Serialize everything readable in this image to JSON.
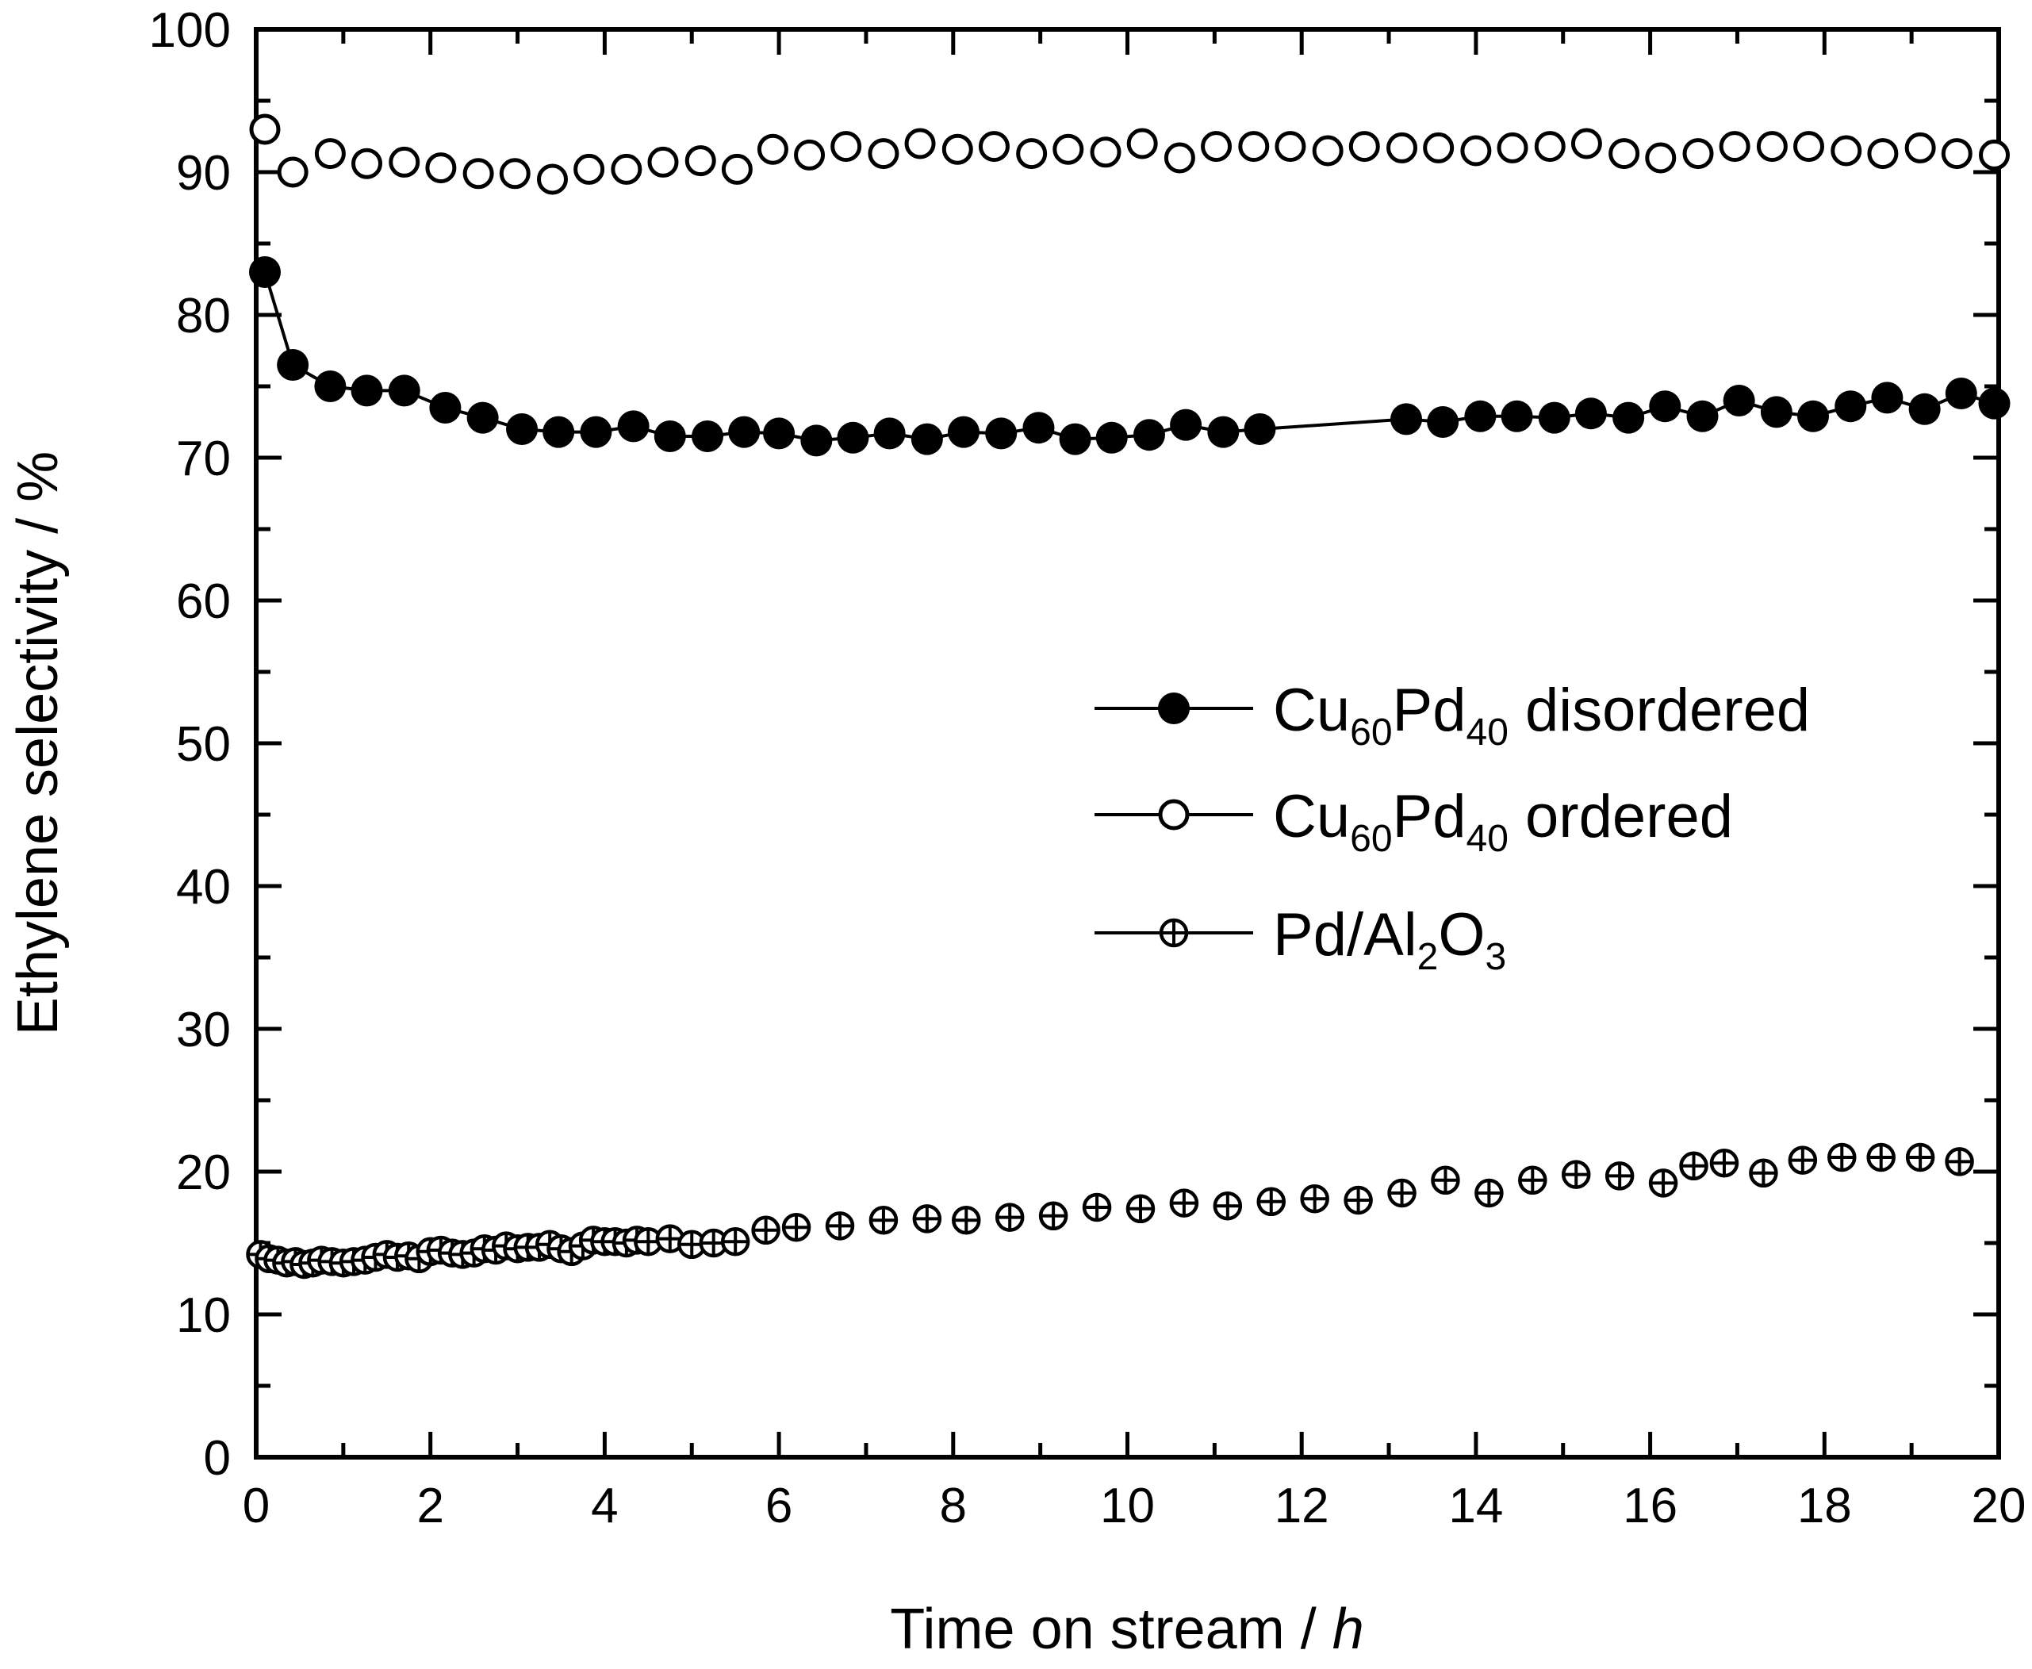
{
  "chart_data": {
    "type": "scatter",
    "title": "",
    "xlabel": "Time on stream / ",
    "xlabel_unit": "h",
    "ylabel": "Ethylene selectivity / %",
    "xlim": [
      0,
      20
    ],
    "ylim": [
      0,
      100
    ],
    "xticks": [
      "0",
      "2",
      "4",
      "6",
      "8",
      "10",
      "12",
      "14",
      "16",
      "18",
      "20"
    ],
    "yticks": [
      "0",
      "10",
      "20",
      "30",
      "40",
      "50",
      "60",
      "70",
      "80",
      "90",
      "100"
    ],
    "grid": false,
    "legend_position": "center-right",
    "series": [
      {
        "name": "Cu60Pd40 disordered",
        "legend": {
          "pre": "Cu",
          "sub1": "60",
          "mid": "Pd",
          "sub2": "40",
          "post": " disordered"
        },
        "marker": "filled-circle",
        "connected": true,
        "x": [
          0.1,
          0.42,
          0.85,
          1.27,
          1.7,
          2.17,
          2.6,
          3.05,
          3.47,
          3.9,
          4.33,
          4.75,
          5.18,
          5.6,
          6.0,
          6.43,
          6.85,
          7.27,
          7.7,
          8.12,
          8.55,
          8.98,
          9.4,
          9.82,
          10.25,
          10.67,
          11.1,
          11.52,
          13.2,
          13.62,
          14.05,
          14.47,
          14.9,
          15.32,
          15.75,
          16.17,
          16.6,
          17.02,
          17.45,
          17.87,
          18.3,
          18.72,
          19.15,
          19.57,
          19.95
        ],
        "y": [
          83.0,
          76.5,
          75.0,
          74.7,
          74.7,
          73.5,
          72.8,
          72.0,
          71.8,
          71.8,
          72.2,
          71.5,
          71.5,
          71.8,
          71.7,
          71.2,
          71.4,
          71.7,
          71.3,
          71.8,
          71.7,
          72.1,
          71.3,
          71.4,
          71.6,
          72.3,
          71.8,
          72.0,
          72.7,
          72.5,
          72.9,
          72.9,
          72.8,
          73.1,
          72.8,
          73.6,
          72.9,
          74.0,
          73.2,
          72.9,
          73.6,
          74.2,
          73.4,
          74.5,
          73.8
        ]
      },
      {
        "name": "Cu60Pd40 ordered",
        "legend": {
          "pre": "Cu",
          "sub1": "60",
          "mid": "Pd",
          "sub2": "40",
          "post": " ordered"
        },
        "marker": "open-circle",
        "connected": false,
        "x": [
          0.1,
          0.42,
          0.85,
          1.27,
          1.7,
          2.12,
          2.55,
          2.97,
          3.4,
          3.82,
          4.25,
          4.67,
          5.1,
          5.52,
          5.93,
          6.35,
          6.77,
          7.2,
          7.62,
          8.05,
          8.47,
          8.9,
          9.32,
          9.75,
          10.17,
          10.6,
          11.02,
          11.45,
          11.87,
          12.3,
          12.72,
          13.15,
          13.57,
          14.0,
          14.42,
          14.85,
          15.27,
          15.7,
          16.12,
          16.55,
          16.97,
          17.4,
          17.82,
          18.25,
          18.67,
          19.1,
          19.52,
          19.95
        ],
        "y": [
          93.0,
          90.0,
          91.3,
          90.6,
          90.7,
          90.3,
          89.9,
          89.9,
          89.5,
          90.2,
          90.2,
          90.7,
          90.8,
          90.2,
          91.6,
          91.2,
          91.8,
          91.3,
          92.0,
          91.6,
          91.8,
          91.3,
          91.6,
          91.4,
          92.0,
          91.0,
          91.8,
          91.8,
          91.8,
          91.5,
          91.8,
          91.7,
          91.7,
          91.5,
          91.7,
          91.8,
          92.0,
          91.3,
          91.0,
          91.3,
          91.8,
          91.8,
          91.8,
          91.5,
          91.3,
          91.7,
          91.3,
          91.2
        ]
      },
      {
        "name": "Pd/Al2O3",
        "legend": {
          "pre": "Pd/Al",
          "sub1": "2",
          "mid": "O",
          "sub2": "3",
          "post": ""
        },
        "marker": "crossed-circle",
        "connected": false,
        "x": [
          0.05,
          0.15,
          0.25,
          0.35,
          0.45,
          0.55,
          0.65,
          0.75,
          0.87,
          1.0,
          1.12,
          1.25,
          1.37,
          1.5,
          1.62,
          1.75,
          1.87,
          2.0,
          2.12,
          2.25,
          2.37,
          2.5,
          2.62,
          2.75,
          2.87,
          3.0,
          3.12,
          3.25,
          3.37,
          3.5,
          3.62,
          3.75,
          3.87,
          4.0,
          4.12,
          4.25,
          4.37,
          4.5,
          4.75,
          5.0,
          5.25,
          5.5,
          5.85,
          6.2,
          6.7,
          7.2,
          7.7,
          8.15,
          8.65,
          9.15,
          9.65,
          10.15,
          10.65,
          11.15,
          11.65,
          12.15,
          12.65,
          13.15,
          13.65,
          14.15,
          14.65,
          15.15,
          15.65,
          16.15,
          16.5,
          16.85,
          17.3,
          17.75,
          18.2,
          18.65,
          19.1,
          19.55
        ],
        "y": [
          14.2,
          13.9,
          13.8,
          13.6,
          13.7,
          13.5,
          13.6,
          13.8,
          13.7,
          13.6,
          13.7,
          13.8,
          14.0,
          14.2,
          14.0,
          14.1,
          13.9,
          14.4,
          14.5,
          14.3,
          14.2,
          14.3,
          14.6,
          14.5,
          14.8,
          14.6,
          14.7,
          14.7,
          14.9,
          14.6,
          14.4,
          14.8,
          15.2,
          15.1,
          15.1,
          15.0,
          15.2,
          15.1,
          15.3,
          14.9,
          15.0,
          15.1,
          15.9,
          16.1,
          16.2,
          16.6,
          16.7,
          16.6,
          16.8,
          16.9,
          17.5,
          17.4,
          17.8,
          17.6,
          17.9,
          18.1,
          18.0,
          18.5,
          19.4,
          18.5,
          19.4,
          19.8,
          19.7,
          19.2,
          20.4,
          20.6,
          19.9,
          20.8,
          21.0,
          21.0,
          21.0,
          20.7
        ]
      }
    ]
  }
}
